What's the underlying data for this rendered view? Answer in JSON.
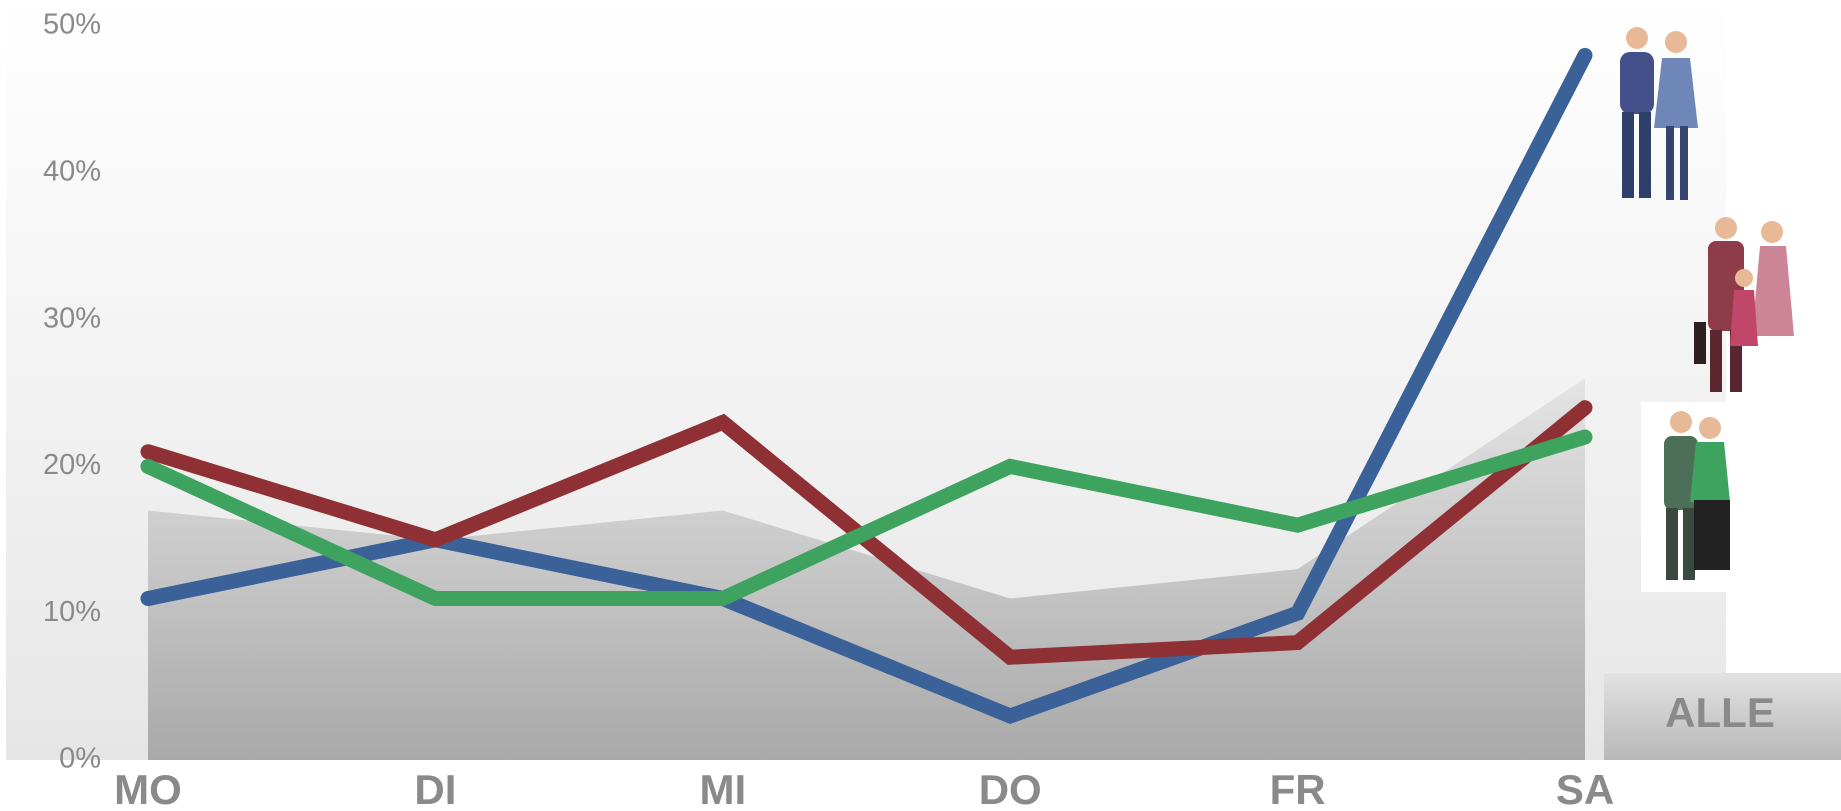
{
  "chart_data": {
    "type": "line",
    "categories": [
      "MO",
      "DI",
      "MI",
      "DO",
      "FR",
      "SA"
    ],
    "series": [
      {
        "name": "ALLE",
        "type": "area",
        "color": "#b4b4b4",
        "values": [
          17,
          15,
          17,
          11,
          13,
          26
        ]
      },
      {
        "color": "#3a6298",
        "values": [
          11,
          15,
          11,
          3,
          10,
          48
        ]
      },
      {
        "color": "#8e3034",
        "values": [
          21,
          15,
          23,
          7,
          8,
          24
        ]
      },
      {
        "color": "#3ea35e",
        "values": [
          20,
          11,
          11,
          20,
          16,
          22
        ]
      }
    ],
    "ylim": [
      0,
      50
    ],
    "yticks": [
      {
        "value": 0,
        "label": "0%"
      },
      {
        "value": 10,
        "label": "10%"
      },
      {
        "value": 20,
        "label": "20%"
      },
      {
        "value": 30,
        "label": "30%"
      },
      {
        "value": 40,
        "label": "40%"
      },
      {
        "value": 50,
        "label": "50%"
      }
    ],
    "grid": false
  }
}
